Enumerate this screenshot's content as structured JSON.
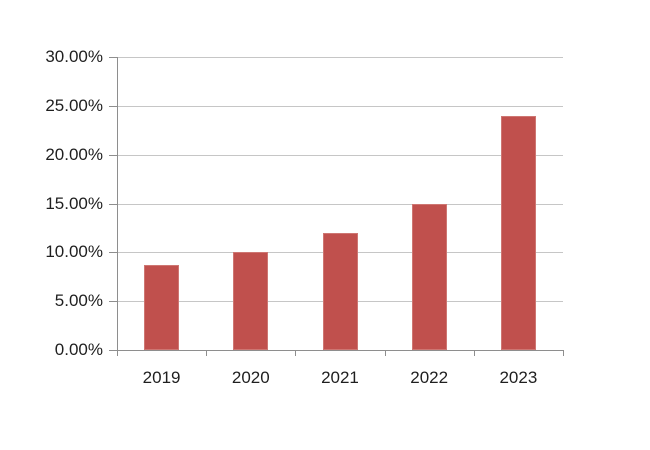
{
  "chart_data": {
    "type": "bar",
    "title": "",
    "categories": [
      "2019",
      "2020",
      "2021",
      "2022",
      "2023"
    ],
    "values": [
      8.7,
      10,
      12,
      15,
      24
    ],
    "series_name": "",
    "value_format": "percent",
    "ylim": [
      0,
      30
    ],
    "ytick_step": 5,
    "ytick_labels": [
      "0.00%",
      "5.00%",
      "10.00%",
      "15.00%",
      "20.00%",
      "25.00%",
      "30.00%"
    ],
    "grid": true,
    "legend": false,
    "colors": {
      "bar_fill": "#C0504D",
      "bar_border": "#CE7672",
      "gridline": "#C6C6C6",
      "axis_line": "#8E8E8E",
      "tick": "#8E8E8E",
      "label_text": "#1F1F1F",
      "background": "#FFFFFF"
    }
  }
}
